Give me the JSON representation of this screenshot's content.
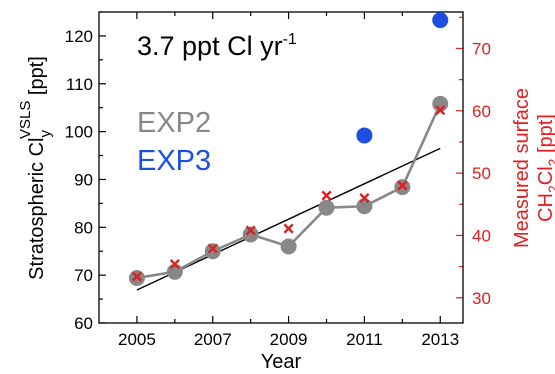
{
  "chart_data": {
    "type": "line",
    "annotation": {
      "prefix": "3.7 ppt Cl yr",
      "superscript": "-1"
    },
    "xlabel": "Year",
    "ylabel_left": {
      "main": "Stratospheric Cl",
      "sub": "y",
      "sup": "VSLS",
      "unit": " [ppt]"
    },
    "ylabel_right": {
      "line1": "Measured surface",
      "line2_a": "CH",
      "line2_sub1": "2",
      "line2_b": "Cl",
      "line2_sub2": "2",
      "line2_c": " [ppt]"
    },
    "x_ticks": [
      2005,
      2007,
      2009,
      2011,
      2013
    ],
    "x_range": [
      2004,
      2013.6
    ],
    "y_left_ticks": [
      60,
      70,
      80,
      90,
      100,
      110,
      120
    ],
    "y_left_range": [
      60,
      125
    ],
    "y_right_ticks": [
      30,
      40,
      50,
      60,
      70
    ],
    "y_right_range": [
      25.95,
      75.85
    ],
    "colors": {
      "exp2": "#888888",
      "exp3": "#1c4fe0",
      "measured": "#e02020",
      "trend": "#000000",
      "right_axis": "#e02020"
    },
    "series": [
      {
        "name": "EXP2",
        "axis": "left",
        "style": "line-markers",
        "x": [
          2005,
          2006,
          2007,
          2008,
          2009,
          2010,
          2011,
          2012,
          2013
        ],
        "y": [
          69.4,
          70.7,
          75.0,
          78.5,
          76.0,
          84.1,
          84.4,
          88.4,
          105.8
        ]
      },
      {
        "name": "EXP3",
        "axis": "left",
        "style": "markers",
        "x": [
          2011,
          2013
        ],
        "y": [
          99.2,
          123.3
        ]
      },
      {
        "axis": "right",
        "style": "x-markers",
        "x": [
          2005,
          2006,
          2007,
          2008,
          2009,
          2010,
          2011,
          2012,
          2013
        ],
        "y": [
          33.4,
          35.4,
          37.9,
          40.8,
          41.1,
          46.4,
          46.0,
          48.0,
          60.1
        ]
      }
    ],
    "trend_line": {
      "x": [
        2005,
        2013
      ],
      "y": [
        66.9,
        96.5
      ]
    }
  }
}
